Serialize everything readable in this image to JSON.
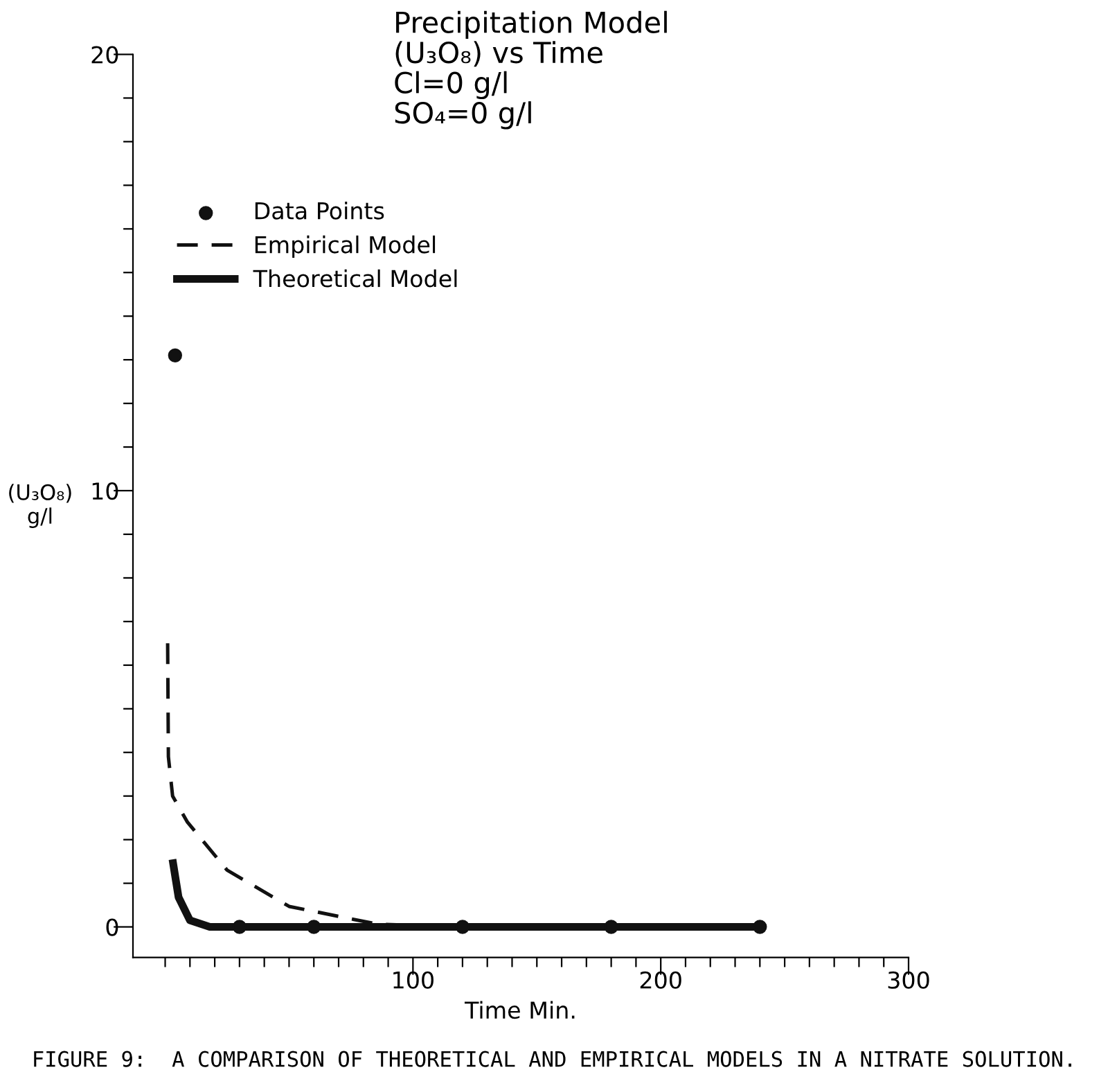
{
  "chart_data": {
    "type": "line",
    "title": "Precipitation Model\n(U₃O₈) vs Time\nCl=0 g/l\nSO₄=0 g/l",
    "xlabel": "Time Min.",
    "ylabel": "(U₃O₈)\ng/l",
    "annotations": [
      "FIGURE 9:  A COMPARISON OF THEORETICAL AND EMPIRICAL MODELS IN A NITRATE SOLUTION."
    ],
    "series": [
      {
        "name": "Data Points",
        "type": "scatter",
        "marker": "circle",
        "color": "#111111",
        "x": [
          4,
          30,
          60,
          120,
          180,
          240
        ],
        "values": [
          13.1,
          0,
          0,
          0,
          0,
          0
        ]
      },
      {
        "name": "Empirical Model",
        "line_style": "dashed",
        "color": "#111111",
        "x": [
          1,
          1.3,
          3,
          9,
          25,
          50,
          86,
          120,
          180,
          240
        ],
        "values": [
          6.5,
          3.9,
          3.0,
          2.4,
          1.3,
          0.47,
          0.06,
          0,
          0,
          0
        ]
      },
      {
        "name": "Theoretical Model",
        "line_style": "solid",
        "color": "#111111",
        "x": [
          3.2,
          5.4,
          10,
          18,
          30,
          60,
          120,
          180,
          240
        ],
        "values": [
          1.46,
          0.68,
          0.15,
          0,
          0,
          0,
          0,
          0,
          0
        ]
      }
    ],
    "xlim": [
      -13,
      300
    ],
    "ylim": [
      -0.7,
      20
    ],
    "xticks": [
      {
        "value": 0,
        "label": null
      },
      {
        "value": 10,
        "label": null
      },
      {
        "value": 20,
        "label": null
      },
      {
        "value": 30,
        "label": null
      },
      {
        "value": 40,
        "label": null
      },
      {
        "value": 50,
        "label": null
      },
      {
        "value": 60,
        "label": null
      },
      {
        "value": 70,
        "label": null
      },
      {
        "value": 80,
        "label": null
      },
      {
        "value": 90,
        "label": null
      },
      100,
      {
        "value": 110,
        "label": null
      },
      {
        "value": 120,
        "label": null
      },
      {
        "value": 130,
        "label": null
      },
      {
        "value": 140,
        "label": null
      },
      {
        "value": 150,
        "label": null
      },
      {
        "value": 160,
        "label": null
      },
      {
        "value": 170,
        "label": null
      },
      {
        "value": 180,
        "label": null
      },
      {
        "value": 190,
        "label": null
      },
      200,
      {
        "value": 210,
        "label": null
      },
      {
        "value": 220,
        "label": null
      },
      {
        "value": 230,
        "label": null
      },
      {
        "value": 240,
        "label": null
      },
      {
        "value": 250,
        "label": null
      },
      {
        "value": 260,
        "label": null
      },
      {
        "value": 270,
        "label": null
      },
      {
        "value": 280,
        "label": null
      },
      {
        "value": 290,
        "label": null
      },
      300
    ],
    "yticks": [
      0,
      {
        "value": 1,
        "label": null
      },
      {
        "value": 2,
        "label": null
      },
      {
        "value": 3,
        "label": null
      },
      {
        "value": 4,
        "label": null
      },
      {
        "value": 5,
        "label": null
      },
      {
        "value": 6,
        "label": null
      },
      {
        "value": 7,
        "label": null
      },
      {
        "value": 8,
        "label": null
      },
      {
        "value": 9,
        "label": null
      },
      10,
      {
        "value": 11,
        "label": null
      },
      {
        "value": 12,
        "label": null
      },
      {
        "value": 13,
        "label": null
      },
      {
        "value": 14,
        "label": null
      },
      {
        "value": 15,
        "label": null
      },
      {
        "value": 16,
        "label": null
      },
      {
        "value": 17,
        "label": null
      },
      {
        "value": 18,
        "label": null
      },
      {
        "value": 19,
        "label": null
      },
      20
    ],
    "grid": false,
    "legend": "top left"
  }
}
